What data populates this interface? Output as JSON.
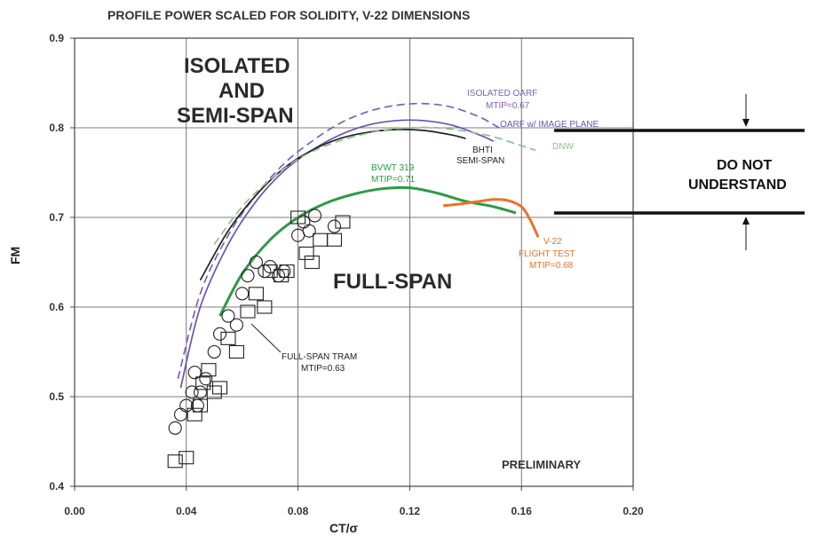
{
  "chart_data": {
    "type": "line",
    "title": "PROFILE POWER SCALED FOR SOLIDITY, V-22 DIMENSIONS",
    "xlabel": "CT/σ",
    "ylabel": "FM",
    "xlim": [
      0.0,
      0.2
    ],
    "ylim": [
      0.4,
      0.9
    ],
    "x_ticks": [
      "0.00",
      "0.04",
      "0.08",
      "0.12",
      "0.16",
      "0.20"
    ],
    "y_ticks": [
      "0.4",
      "0.5",
      "0.6",
      "0.7",
      "0.8",
      "0.9"
    ],
    "grid": true,
    "region_labels": [
      "ISOLATED",
      "AND",
      "SEMI-SPAN",
      "FULL-SPAN"
    ],
    "note": [
      "DO NOT",
      "UNDERSTAND"
    ],
    "watermark": "PRELIMINARY",
    "series": [
      {
        "name": "ISOLATED OARF MTIP=0.67",
        "labels": [
          "ISOLATED OARF",
          "MTIP=0.67"
        ],
        "color": "#7b63b8",
        "dashed": true,
        "x": [
          0.037,
          0.045,
          0.055,
          0.065,
          0.075,
          0.085,
          0.095,
          0.105,
          0.115,
          0.125,
          0.135,
          0.145,
          0.152
        ],
        "y": [
          0.52,
          0.615,
          0.68,
          0.725,
          0.76,
          0.785,
          0.805,
          0.818,
          0.825,
          0.827,
          0.823,
          0.812,
          0.8
        ]
      },
      {
        "name": "OARF w/ IMAGE PLANE",
        "labels": [
          "OARF w/ IMAGE PLANE"
        ],
        "color": "#6a55b0",
        "dashed": false,
        "x": [
          0.038,
          0.045,
          0.055,
          0.065,
          0.075,
          0.085,
          0.095,
          0.105,
          0.115,
          0.125,
          0.135,
          0.145,
          0.15
        ],
        "y": [
          0.51,
          0.6,
          0.67,
          0.718,
          0.752,
          0.775,
          0.792,
          0.803,
          0.808,
          0.808,
          0.803,
          0.792,
          0.785
        ]
      },
      {
        "name": "BHTI SEMI-SPAN",
        "labels": [
          "BHTI",
          "SEMI-SPAN"
        ],
        "color": "#222222",
        "dashed": false,
        "x": [
          0.045,
          0.055,
          0.065,
          0.075,
          0.085,
          0.095,
          0.105,
          0.115,
          0.125,
          0.135,
          0.14
        ],
        "y": [
          0.63,
          0.685,
          0.725,
          0.755,
          0.775,
          0.788,
          0.795,
          0.798,
          0.797,
          0.792,
          0.788
        ]
      },
      {
        "name": "DNW",
        "labels": [
          "DNW"
        ],
        "color": "#8fbf8f",
        "dashed": true,
        "x": [
          0.05,
          0.06,
          0.07,
          0.08,
          0.09,
          0.1,
          0.11,
          0.12,
          0.13,
          0.14,
          0.15,
          0.16,
          0.165
        ],
        "y": [
          0.67,
          0.712,
          0.742,
          0.765,
          0.78,
          0.79,
          0.797,
          0.8,
          0.8,
          0.796,
          0.79,
          0.78,
          0.775
        ]
      },
      {
        "name": "BVWT 319 MTIP=0.71",
        "labels": [
          "BVWT 319",
          "MTIP=0.71"
        ],
        "color": "#2e9a46",
        "dashed": false,
        "x": [
          0.052,
          0.06,
          0.07,
          0.08,
          0.09,
          0.1,
          0.11,
          0.12,
          0.13,
          0.14,
          0.15,
          0.158
        ],
        "y": [
          0.59,
          0.637,
          0.675,
          0.7,
          0.716,
          0.726,
          0.732,
          0.733,
          0.727,
          0.718,
          0.712,
          0.705
        ]
      },
      {
        "name": "V-22 FLIGHT TEST MTIP=0.68",
        "labels": [
          "V-22",
          "FLIGHT TEST",
          "MTIP=0.68"
        ],
        "color": "#e8722a",
        "dashed": false,
        "x": [
          0.132,
          0.138,
          0.145,
          0.15,
          0.155,
          0.16,
          0.163,
          0.166
        ],
        "y": [
          0.713,
          0.715,
          0.718,
          0.72,
          0.719,
          0.712,
          0.698,
          0.678
        ]
      },
      {
        "name": "FULL-SPAN TRAM MTIP=0.63 (circles)",
        "labels": [
          "FULL-SPAN TRAM",
          "MTIP=0.63"
        ],
        "color": "#222222",
        "marker": "circle",
        "x": [
          0.036,
          0.038,
          0.04,
          0.042,
          0.043,
          0.044,
          0.045,
          0.047,
          0.05,
          0.052,
          0.055,
          0.058,
          0.06,
          0.062,
          0.065,
          0.068,
          0.07,
          0.073,
          0.075,
          0.08,
          0.082,
          0.084,
          0.086,
          0.093
        ],
        "y": [
          0.465,
          0.48,
          0.49,
          0.505,
          0.527,
          0.49,
          0.505,
          0.52,
          0.55,
          0.57,
          0.59,
          0.58,
          0.615,
          0.635,
          0.65,
          0.64,
          0.645,
          0.635,
          0.64,
          0.68,
          0.695,
          0.685,
          0.702,
          0.69
        ]
      },
      {
        "name": "FULL-SPAN TRAM (squares)",
        "labels": [],
        "color": "#222222",
        "marker": "square",
        "x": [
          0.036,
          0.04,
          0.043,
          0.045,
          0.046,
          0.048,
          0.05,
          0.052,
          0.055,
          0.058,
          0.062,
          0.065,
          0.068,
          0.07,
          0.074,
          0.076,
          0.08,
          0.083,
          0.085,
          0.088,
          0.093,
          0.096
        ],
        "y": [
          0.428,
          0.432,
          0.48,
          0.49,
          0.515,
          0.53,
          0.505,
          0.51,
          0.565,
          0.55,
          0.595,
          0.615,
          0.6,
          0.64,
          0.635,
          0.64,
          0.7,
          0.66,
          0.65,
          0.675,
          0.675,
          0.695
        ]
      }
    ]
  }
}
